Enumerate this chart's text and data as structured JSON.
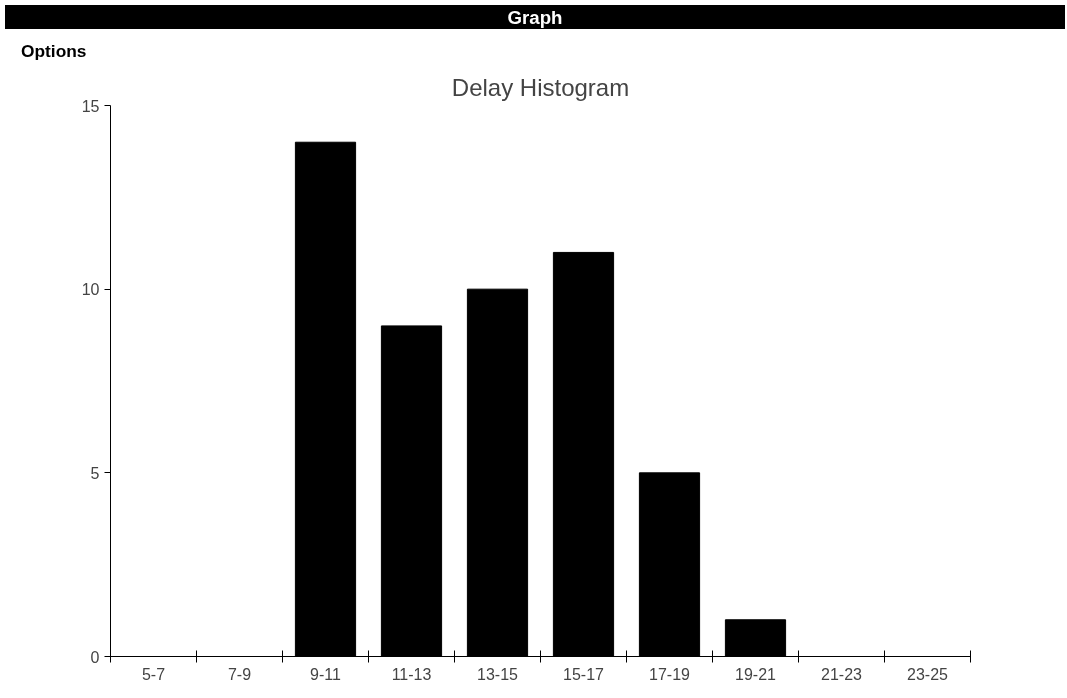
{
  "chart_data": {
    "type": "bar",
    "title": "Delay Histogram",
    "annotations": [
      "Graph",
      "Options"
    ],
    "categories": [
      "5-7",
      "7-9",
      "9-11",
      "11-13",
      "13-15",
      "15-17",
      "17-19",
      "19-21",
      "21-23",
      "23-25"
    ],
    "values": [
      0,
      0,
      14,
      9,
      10,
      11,
      5,
      1,
      0,
      0
    ],
    "color": "#000000",
    "ylim": [
      0,
      15
    ],
    "yticks": [
      0,
      5,
      10,
      15
    ],
    "grid": false
  }
}
